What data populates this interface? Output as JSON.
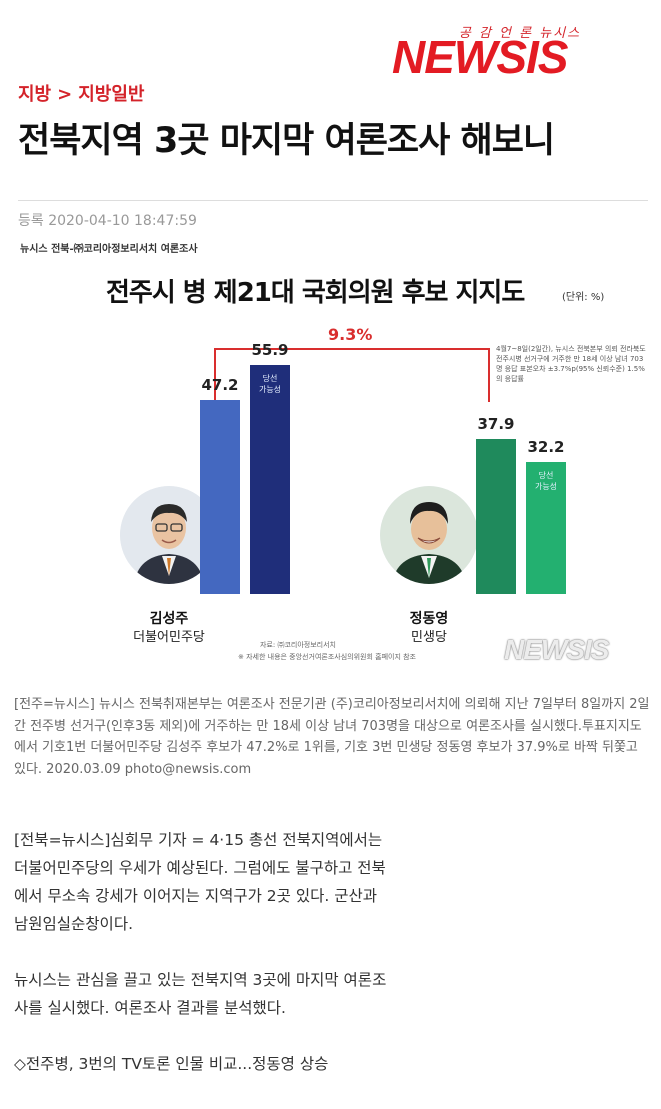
{
  "logo": {
    "tagline": "공 감 언 론 뉴시스",
    "name": "NEWSIS"
  },
  "breadcrumb": {
    "section": "지방",
    "separator": ">",
    "subsection": "지방일반"
  },
  "article": {
    "title": "전북지역 3곳 마지막 여론조사 해보니",
    "date": "등록 2020-04-10 18:47:59"
  },
  "infographic": {
    "source": "뉴시스 전북-㈜코리아정보리서치 여론조사",
    "unit": "(단위: %)",
    "note": "4월7~8일(2일간), 뉴시스 전북본부 의뢰 전라북도 전주시병 선거구에 거주한 만 18세 이상 남녀 703명 응답 표본오차 ±3.7%p(95% 신뢰수준) 1.5%의 응답률",
    "footnote": "※ 자세한 내용은 중앙선거여론조사심의위원회 홈페이지 참조",
    "credit": "자료: ㈜코리아정보리서치",
    "gap_label": "9.3%",
    "win_tag_line1": "당선",
    "win_tag_line2": "가능성",
    "watermark": "NEWSIS",
    "candidates": [
      {
        "name": "김성주",
        "party": "더불어민주당"
      },
      {
        "name": "정동영",
        "party": "민생당"
      }
    ],
    "colors": {
      "dem_support": "#4468c0",
      "dem_win": "#1f2e7a",
      "minsaeng_support": "#1f8a5c",
      "minsaeng_win": "#23b070",
      "gap": "#d92e2e"
    }
  },
  "chart_data": {
    "type": "bar",
    "title": "전주시 병 제21대 국회의원 후보 지지도",
    "categories": [
      "김성주",
      "정동영"
    ],
    "series": [
      {
        "values": [
          47.2,
          37.9
        ]
      },
      {
        "name": "당선 가능성",
        "values": [
          55.9,
          32.2
        ]
      }
    ],
    "annotations": [
      "9.3%"
    ]
  },
  "caption": "[전주=뉴시스] 뉴시스 전북취재본부는 여론조사 전문기관 (주)코리아정보리서치에 의뢰해 지난 7일부터 8일까지 2일간 전주병 선거구(인후3동 제외)에 거주하는 만 18세 이상 남녀 703명을 대상으로 여론조사를 실시했다.투표지지도에서 기호1번 더불어민주당 김성주 후보가 47.2%로 1위를, 기호 3번 민생당 정동영 후보가 37.9%로 바짝 뒤쫓고 있다. 2020.03.09 photo@newsis.com",
  "body": [
    "[전북=뉴시스]심회무 기자 = 4·15 총선 전북지역에서는 더불어민주당의 우세가 예상된다. 그럼에도 불구하고 전북에서 무소속 강세가 이어지는 지역구가 2곳 있다. 군산과 남원임실순창이다.",
    "뉴시스는 관심을 끌고 있는 전북지역 3곳에 마지막 여론조사를 실시했다. 여론조사 결과를 분석했다.",
    "◇전주병, 3번의 TV토론 인물 비교...정동영 상승"
  ]
}
